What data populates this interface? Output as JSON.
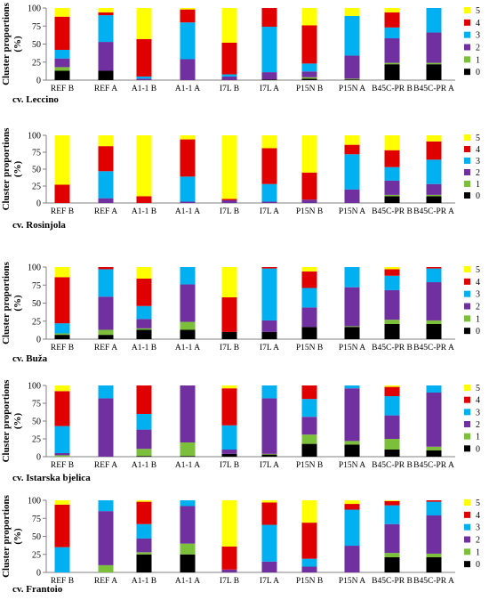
{
  "figure": {
    "ylabel_line1": "Cluster proportions",
    "ylabel_line2": "(%)",
    "categories": [
      "REF B",
      "REF A",
      "A1-1 B",
      "A1-1 A",
      "I7L B",
      "I7L A",
      "P15N B",
      "P15N A",
      "B45C-PR B",
      "B45C-PR A"
    ],
    "yticks": [
      0,
      25,
      50,
      75,
      100
    ],
    "legend_labels": [
      "5",
      "4",
      "3",
      "2",
      "1",
      "0"
    ]
  },
  "colors": {
    "c0": "#000000",
    "c1": "#7bbf3a",
    "c2": "#7030a0",
    "c3": "#00b0f0",
    "c4": "#e00000",
    "c5": "#ffff00"
  },
  "chart_data": [
    {
      "type": "bar",
      "stacked": true,
      "title": "cv. Leccino",
      "ylabel": "Cluster proportions (%)",
      "ylim": [
        0,
        100
      ],
      "categories": [
        "REF B",
        "REF A",
        "A1-1 B",
        "A1-1 A",
        "I7L B",
        "I7L A",
        "P15N B",
        "P15N A",
        "B45C-PR B",
        "B45C-PR A"
      ],
      "series": [
        {
          "name": "0",
          "values": [
            13,
            13,
            0,
            0,
            0,
            1,
            2,
            1,
            22,
            22
          ]
        },
        {
          "name": "1",
          "values": [
            5,
            0,
            0,
            0,
            0,
            0,
            2,
            1,
            2,
            2
          ]
        },
        {
          "name": "2",
          "values": [
            12,
            40,
            2,
            29,
            5,
            10,
            8,
            32,
            34,
            42
          ]
        },
        {
          "name": "3",
          "values": [
            12,
            37,
            3,
            51,
            3,
            63,
            11,
            55,
            15,
            34
          ]
        },
        {
          "name": "4",
          "values": [
            46,
            4,
            52,
            18,
            44,
            26,
            53,
            0,
            21,
            0
          ]
        },
        {
          "name": "5",
          "values": [
            12,
            6,
            43,
            2,
            48,
            0,
            24,
            11,
            6,
            0
          ]
        }
      ]
    },
    {
      "type": "bar",
      "stacked": true,
      "title": "cv. Rosinjola",
      "ylabel": "Cluster proportions (%)",
      "ylim": [
        0,
        100
      ],
      "categories": [
        "REF B",
        "REF A",
        "A1-1 B",
        "A1-1 A",
        "I7L B",
        "I7L A",
        "P15N B",
        "P15N A",
        "B45C-PR B",
        "B45C-PR A"
      ],
      "series": [
        {
          "name": "0",
          "values": [
            0,
            0,
            0,
            0,
            0,
            0,
            0,
            0,
            10,
            10
          ]
        },
        {
          "name": "1",
          "values": [
            0,
            0,
            0,
            0,
            0,
            0,
            0,
            0,
            2,
            2
          ]
        },
        {
          "name": "2",
          "values": [
            0,
            7,
            0,
            2,
            4,
            2,
            5,
            20,
            21,
            16
          ]
        },
        {
          "name": "3",
          "values": [
            0,
            40,
            0,
            37,
            0,
            26,
            0,
            52,
            20,
            36
          ]
        },
        {
          "name": "4",
          "values": [
            27,
            37,
            10,
            55,
            2,
            53,
            40,
            14,
            25,
            27
          ]
        },
        {
          "name": "5",
          "values": [
            73,
            16,
            90,
            6,
            94,
            19,
            55,
            14,
            22,
            9
          ]
        }
      ]
    },
    {
      "type": "bar",
      "stacked": true,
      "title": "cv. Buža",
      "ylabel": "Cluster proportions (%)",
      "ylim": [
        0,
        100
      ],
      "categories": [
        "REF B",
        "REF A",
        "A1-1 B",
        "A1-1 A",
        "I7L B",
        "I7L A",
        "P15N B",
        "P15N A",
        "B45C-PR B",
        "B45C-PR A"
      ],
      "series": [
        {
          "name": "0",
          "values": [
            6,
            6,
            13,
            13,
            10,
            10,
            17,
            17,
            21,
            21
          ]
        },
        {
          "name": "1",
          "values": [
            2,
            7,
            2,
            11,
            0,
            0,
            0,
            1,
            6,
            5
          ]
        },
        {
          "name": "2",
          "values": [
            0,
            46,
            13,
            52,
            0,
            16,
            27,
            54,
            41,
            53
          ]
        },
        {
          "name": "3",
          "values": [
            14,
            38,
            18,
            24,
            0,
            72,
            27,
            28,
            20,
            19
          ]
        },
        {
          "name": "4",
          "values": [
            64,
            3,
            38,
            0,
            48,
            2,
            23,
            0,
            9,
            2
          ]
        },
        {
          "name": "5",
          "values": [
            14,
            0,
            16,
            0,
            42,
            0,
            6,
            0,
            3,
            0
          ]
        }
      ]
    },
    {
      "type": "bar",
      "stacked": true,
      "title": "cv. Istarska bjelica",
      "ylabel": "Cluster proportions (%)",
      "ylim": [
        0,
        100
      ],
      "categories": [
        "REF B",
        "REF A",
        "A1-1 B",
        "A1-1 A",
        "I7L B",
        "I7L A",
        "P15N B",
        "P15N A",
        "B45C-PR B",
        "B45C-PR A"
      ],
      "series": [
        {
          "name": "0",
          "values": [
            0,
            0,
            1,
            1,
            4,
            3,
            18,
            17,
            10,
            9
          ]
        },
        {
          "name": "1",
          "values": [
            2,
            0,
            10,
            19,
            0,
            1,
            13,
            5,
            15,
            5
          ]
        },
        {
          "name": "2",
          "values": [
            3,
            82,
            27,
            80,
            6,
            78,
            25,
            74,
            33,
            76
          ]
        },
        {
          "name": "3",
          "values": [
            38,
            18,
            22,
            0,
            34,
            18,
            25,
            4,
            27,
            10
          ]
        },
        {
          "name": "4",
          "values": [
            49,
            0,
            40,
            0,
            52,
            0,
            19,
            0,
            13,
            0
          ]
        },
        {
          "name": "5",
          "values": [
            8,
            0,
            0,
            0,
            4,
            0,
            0,
            0,
            2,
            0
          ]
        }
      ]
    },
    {
      "type": "bar",
      "stacked": true,
      "title": "cv. Frantoio",
      "ylabel": "Cluster proportions (%)",
      "ylim": [
        0,
        100
      ],
      "categories": [
        "REF B",
        "REF A",
        "A1-1 B",
        "A1-1 A",
        "I7L B",
        "I7L A",
        "P15N B",
        "P15N A",
        "B45C-PR B",
        "B45C-PR A"
      ],
      "series": [
        {
          "name": "0",
          "values": [
            0,
            0,
            25,
            25,
            0,
            0,
            0,
            0,
            21,
            21
          ]
        },
        {
          "name": "1",
          "values": [
            0,
            10,
            3,
            15,
            0,
            0,
            0,
            0,
            6,
            5
          ]
        },
        {
          "name": "2",
          "values": [
            0,
            75,
            19,
            52,
            4,
            15,
            8,
            37,
            40,
            53
          ]
        },
        {
          "name": "3",
          "values": [
            35,
            15,
            20,
            8,
            0,
            51,
            11,
            50,
            26,
            19
          ]
        },
        {
          "name": "4",
          "values": [
            59,
            0,
            31,
            0,
            32,
            31,
            50,
            8,
            6,
            2
          ]
        },
        {
          "name": "5",
          "values": [
            6,
            0,
            2,
            0,
            64,
            3,
            31,
            5,
            1,
            0
          ]
        }
      ]
    }
  ]
}
